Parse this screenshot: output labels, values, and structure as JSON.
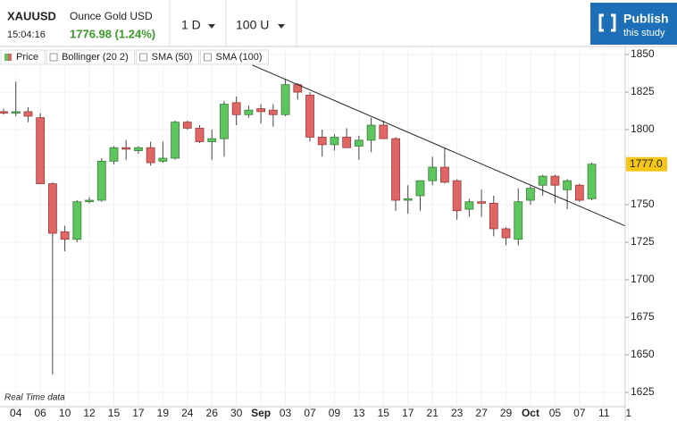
{
  "header": {
    "symbol": "XAUUSD",
    "time": "15:04:16",
    "name": "Ounce Gold USD",
    "price": "1776.98 (1.24%)",
    "interval": "1 D",
    "bars": "100 U",
    "publish": "Publish",
    "publish_sub": "this study"
  },
  "chart_data": {
    "type": "candlestick",
    "studies": [
      "Price",
      "Bollinger (20 2)",
      "SMA (50)",
      "SMA (100)"
    ],
    "footnote": "Real Time data",
    "categories": [
      null,
      "04",
      null,
      "06",
      null,
      "10",
      null,
      "12",
      null,
      "15",
      null,
      "17",
      null,
      "19",
      null,
      "24",
      null,
      "26",
      null,
      "30",
      null,
      "Sep",
      null,
      "03",
      null,
      "07",
      null,
      "09",
      null,
      "13",
      null,
      "15",
      null,
      "17",
      null,
      "21",
      null,
      "23",
      null,
      "27",
      null,
      "29",
      null,
      "Oct",
      null,
      "05",
      null,
      "07",
      null,
      "11",
      null,
      "1"
    ],
    "open": [
      1812,
      1811,
      1812,
      1808,
      1764,
      1732,
      1727,
      1752,
      1753,
      1779,
      1788,
      1786,
      1788,
      1779,
      1781,
      1805,
      1801,
      1792,
      1794,
      1818,
      1810,
      1814,
      1813,
      1810,
      1830,
      1823,
      1795,
      1790,
      1795,
      1789,
      1793,
      1803,
      1794,
      1753,
      1756,
      1766,
      1775,
      1766,
      1747,
      1752,
      1751,
      1734,
      1727,
      1753,
      1763,
      1769,
      1760,
      1763,
      1754,
      null,
      null,
      null
    ],
    "high": [
      1814,
      1832,
      1815,
      1811,
      1765,
      1736,
      1753,
      1755,
      1781,
      1789,
      1793,
      1789,
      1792,
      1792,
      1806,
      1806,
      1803,
      1800,
      1819,
      1822,
      1816,
      1817,
      1817,
      1834,
      1831,
      1825,
      1800,
      1797,
      1801,
      1796,
      1808,
      1806,
      1795,
      1763,
      1766,
      1782,
      1788,
      1767,
      1754,
      1760,
      1756,
      1735,
      1761,
      1763,
      1770,
      1770,
      1767,
      1764,
      1778,
      null,
      null,
      null
    ],
    "low": [
      1810,
      1809,
      1805,
      1764,
      1637,
      1719,
      1725,
      1751,
      1752,
      1777,
      1780,
      1784,
      1776,
      1778,
      1780,
      1800,
      1791,
      1780,
      1782,
      1803,
      1808,
      1804,
      1802,
      1809,
      1820,
      1792,
      1782,
      1786,
      1788,
      1780,
      1785,
      1794,
      1746,
      1744,
      1746,
      1763,
      1764,
      1740,
      1742,
      1742,
      1729,
      1723,
      1723,
      1750,
      1756,
      1751,
      1747,
      1752,
      1753,
      null,
      null,
      null
    ],
    "close": [
      1811,
      1812,
      1809,
      1764,
      1731,
      1727,
      1752,
      1753,
      1779,
      1788,
      1787,
      1788,
      1778,
      1781,
      1805,
      1801,
      1792,
      1794,
      1817,
      1810,
      1813,
      1812,
      1810,
      1830,
      1825,
      1795,
      1790,
      1795,
      1788,
      1793,
      1803,
      1794,
      1753,
      1754,
      1766,
      1775,
      1765,
      1746,
      1752,
      1751,
      1734,
      1728,
      1752,
      1761,
      1769,
      1763,
      1766,
      1753,
      1777,
      null,
      null,
      null
    ],
    "up_color": "#5ec65e",
    "down_color": "#e06666",
    "ylim": [
      1615.5,
      1855.4
    ],
    "yticks": [
      1625,
      1650,
      1675,
      1700,
      1725,
      1750,
      1775,
      1800,
      1825,
      1850
    ],
    "grid": true,
    "last_price": {
      "value": 1777,
      "label": "1777.0"
    },
    "trendline": {
      "x": [
        20.3,
        50.7
      ],
      "y": [
        1843,
        1736
      ]
    }
  }
}
